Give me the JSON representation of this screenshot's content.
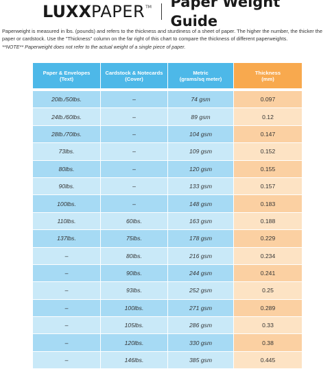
{
  "logo": {
    "lux": "LUX",
    "x": "X",
    "paper": "PAPER",
    "tm": "TM"
  },
  "title": "Paper Weight Guide",
  "intro": "Paperweight is measured in lbs. (pounds) and refers to the thickness and sturdiness of a sheet of paper. The higher the number, the thicker the paper or cardstock. Use the \"Thickness\" column on the far right of this chart to compare the thickness of different paperweights.",
  "note": "**NOTE** Paperweight does not refer to the actual weight of a single piece of paper.",
  "colors": {
    "header_blue": "#4db8e8",
    "header_orange": "#f8a94e",
    "row_blue_light": "#c9e9f8",
    "row_blue_dark": "#a6daf4",
    "row_orange_light": "#fde3c4",
    "row_orange_dark": "#fbd0a2"
  },
  "table": {
    "headers": [
      {
        "line1": "Paper & Envelopes",
        "line2": "(Text)"
      },
      {
        "line1": "Cardstock & Notecards",
        "line2": "(Cover)"
      },
      {
        "line1": "Metric",
        "line2": "(grams/sq meter)"
      },
      {
        "line1": "Thickness",
        "line2": "(mm)"
      }
    ],
    "rows": [
      {
        "text": "20lb./50lbs.",
        "cover": "–",
        "metric": "74 gsm",
        "thickness": "0.097"
      },
      {
        "text": "24lb./60lbs.",
        "cover": "–",
        "metric": "89 gsm",
        "thickness": "0.12"
      },
      {
        "text": "28lb./70lbs.",
        "cover": "–",
        "metric": "104 gsm",
        "thickness": "0.147"
      },
      {
        "text": "73lbs.",
        "cover": "–",
        "metric": "109 gsm",
        "thickness": "0.152"
      },
      {
        "text": "80lbs.",
        "cover": "–",
        "metric": "120 gsm",
        "thickness": "0.155"
      },
      {
        "text": "90lbs.",
        "cover": "–",
        "metric": "133 gsm",
        "thickness": "0.157"
      },
      {
        "text": "100lbs.",
        "cover": "–",
        "metric": "148 gsm",
        "thickness": "0.183"
      },
      {
        "text": "110lbs.",
        "cover": "60lbs.",
        "metric": "163 gsm",
        "thickness": "0.188"
      },
      {
        "text": "137lbs.",
        "cover": "75lbs.",
        "metric": "178 gsm",
        "thickness": "0.229"
      },
      {
        "text": "–",
        "cover": "80lbs.",
        "metric": "216 gsm",
        "thickness": "0.234"
      },
      {
        "text": "–",
        "cover": "90lbs.",
        "metric": "244 gsm",
        "thickness": "0.241"
      },
      {
        "text": "–",
        "cover": "93lbs.",
        "metric": "252 gsm",
        "thickness": "0.25"
      },
      {
        "text": "–",
        "cover": "100lbs.",
        "metric": "271 gsm",
        "thickness": "0.289"
      },
      {
        "text": "–",
        "cover": "105lbs.",
        "metric": "286 gsm",
        "thickness": "0.33"
      },
      {
        "text": "–",
        "cover": "120lbs.",
        "metric": "330 gsm",
        "thickness": "0.38"
      },
      {
        "text": "–",
        "cover": "146lbs.",
        "metric": "385 gsm",
        "thickness": "0.445"
      }
    ]
  }
}
